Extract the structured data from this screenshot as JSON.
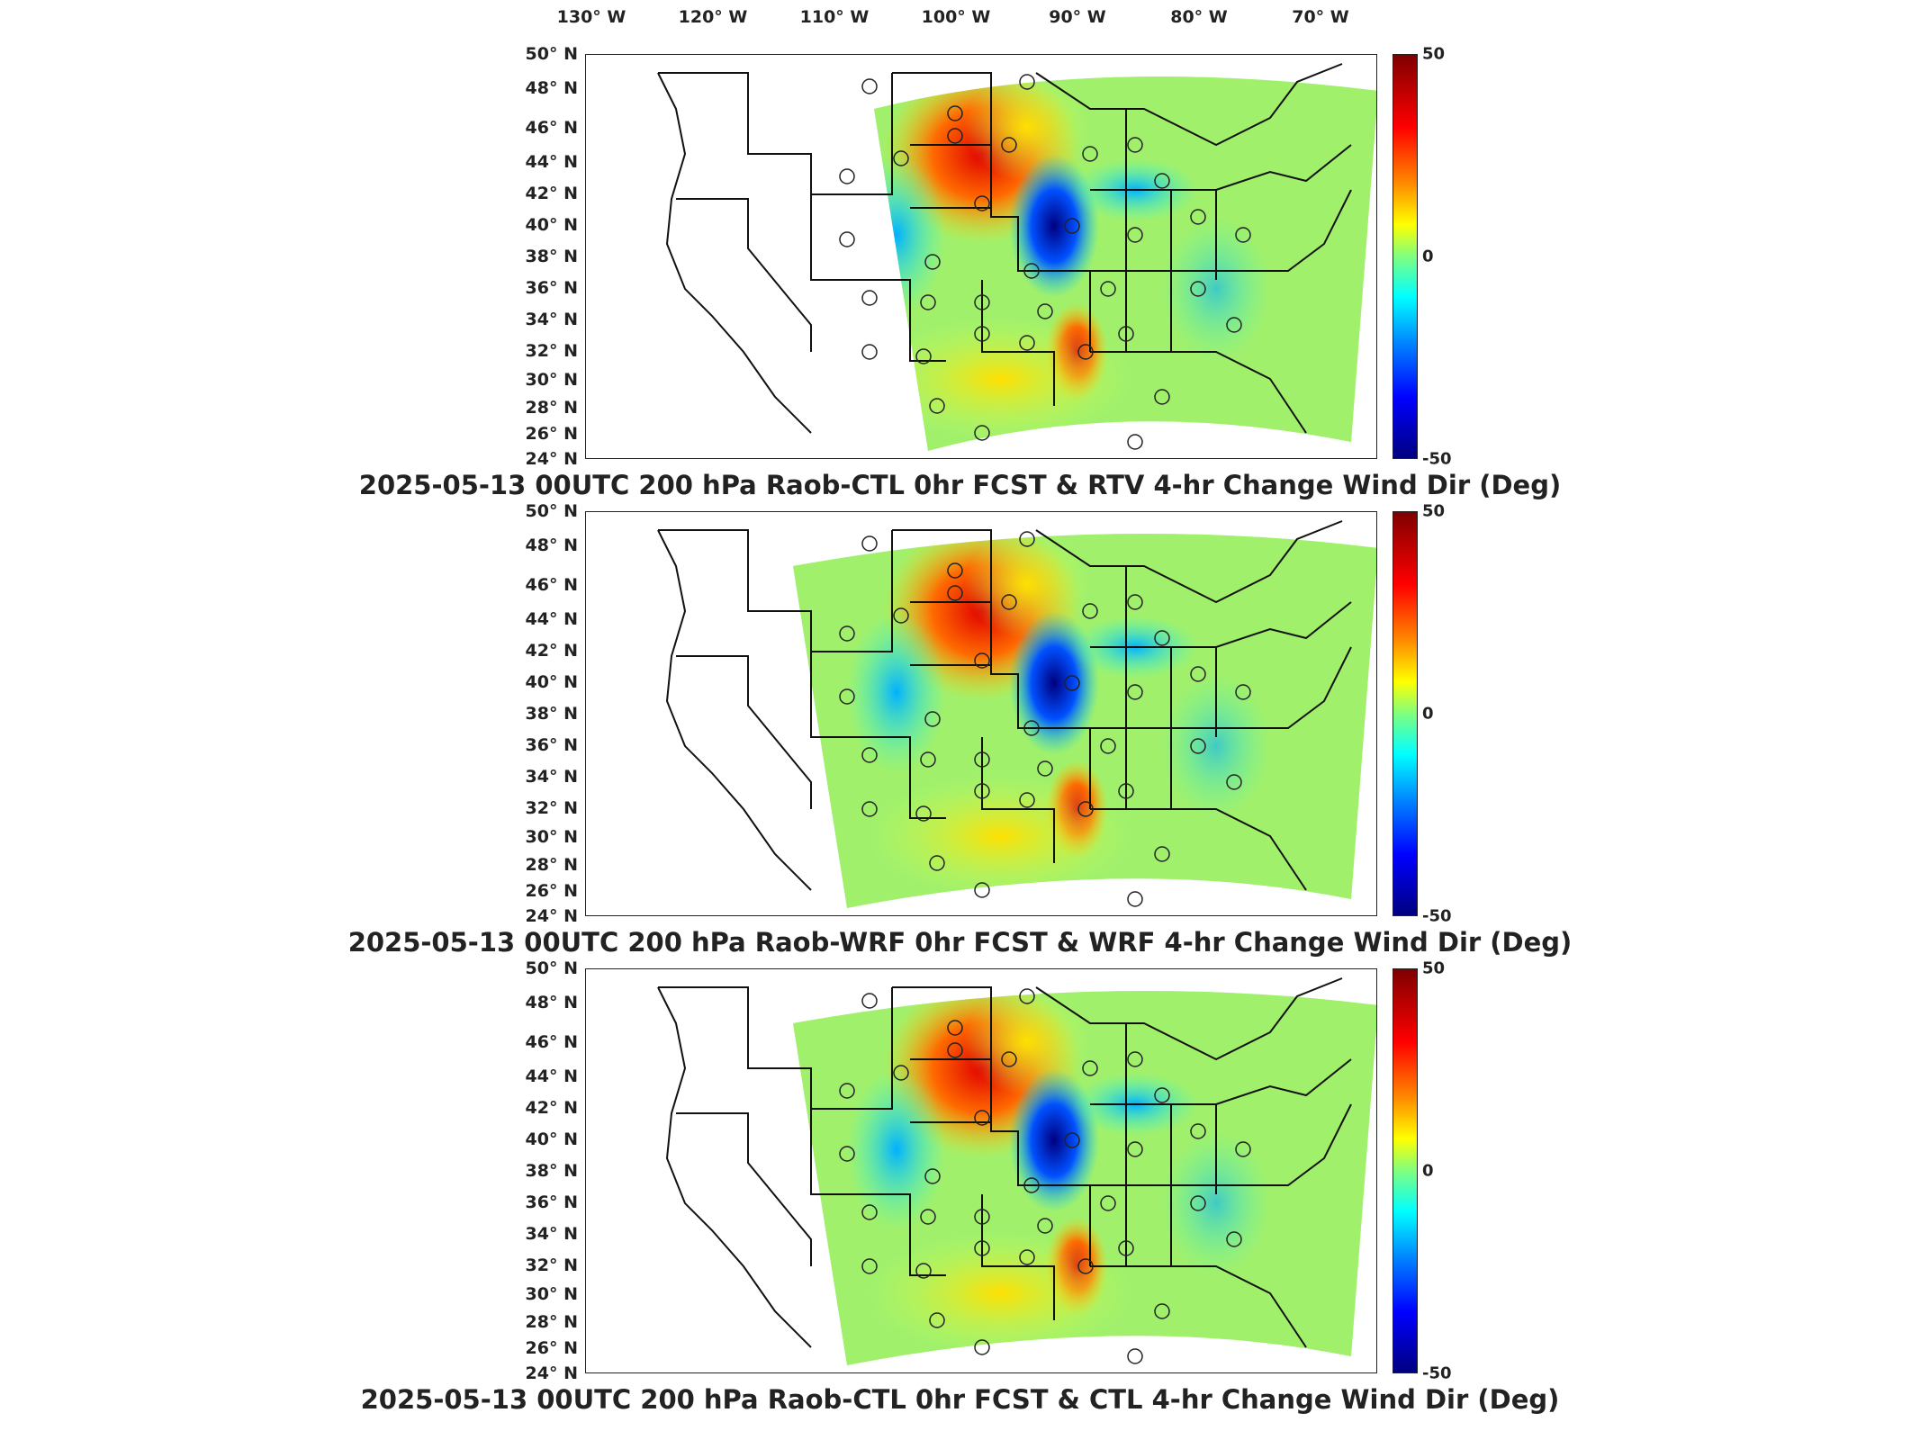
{
  "lon_ticks": [
    "130° W",
    "120° W",
    "110° W",
    "100° W",
    "90° W",
    "80° W",
    "70° W"
  ],
  "lat_ticks": [
    "50° N",
    "48° N",
    "46° N",
    "44° N",
    "42° N",
    "40° N",
    "38° N",
    "36° N",
    "34° N",
    "32° N",
    "30° N",
    "28° N",
    "26° N",
    "24° N"
  ],
  "colorbar": {
    "max": "50",
    "mid": "0",
    "min": "-50",
    "colors": [
      "#7f0000",
      "#ff0000",
      "#ff8c00",
      "#ffff00",
      "#7fff7f",
      "#00ffff",
      "#0080ff",
      "#0000ff",
      "#00007f"
    ]
  },
  "panels": [
    {
      "title": "2025-05-13 00UTC 200 hPa Raob-CTL 0hr FCST & RTV 4-hr Change Wind Dir (Deg)"
    },
    {
      "title": "2025-05-13 00UTC 200 hPa Raob-WRF 0hr FCST & WRF 4-hr Change Wind Dir (Deg)"
    },
    {
      "title": "2025-05-13 00UTC 200 hPa Raob-CTL 0hr FCST & CTL 4-hr Change Wind Dir (Deg)"
    }
  ],
  "chart_data": {
    "type": "heatmap",
    "variable": "200 hPa 4-hr Change Wind Dir (Deg)",
    "xlabel": "",
    "ylabel": "",
    "x_range_lon": [
      -135,
      -63
    ],
    "y_range_lat": [
      24,
      50
    ],
    "colorbar_range": [
      -50,
      50
    ],
    "panels_count": 3
  }
}
